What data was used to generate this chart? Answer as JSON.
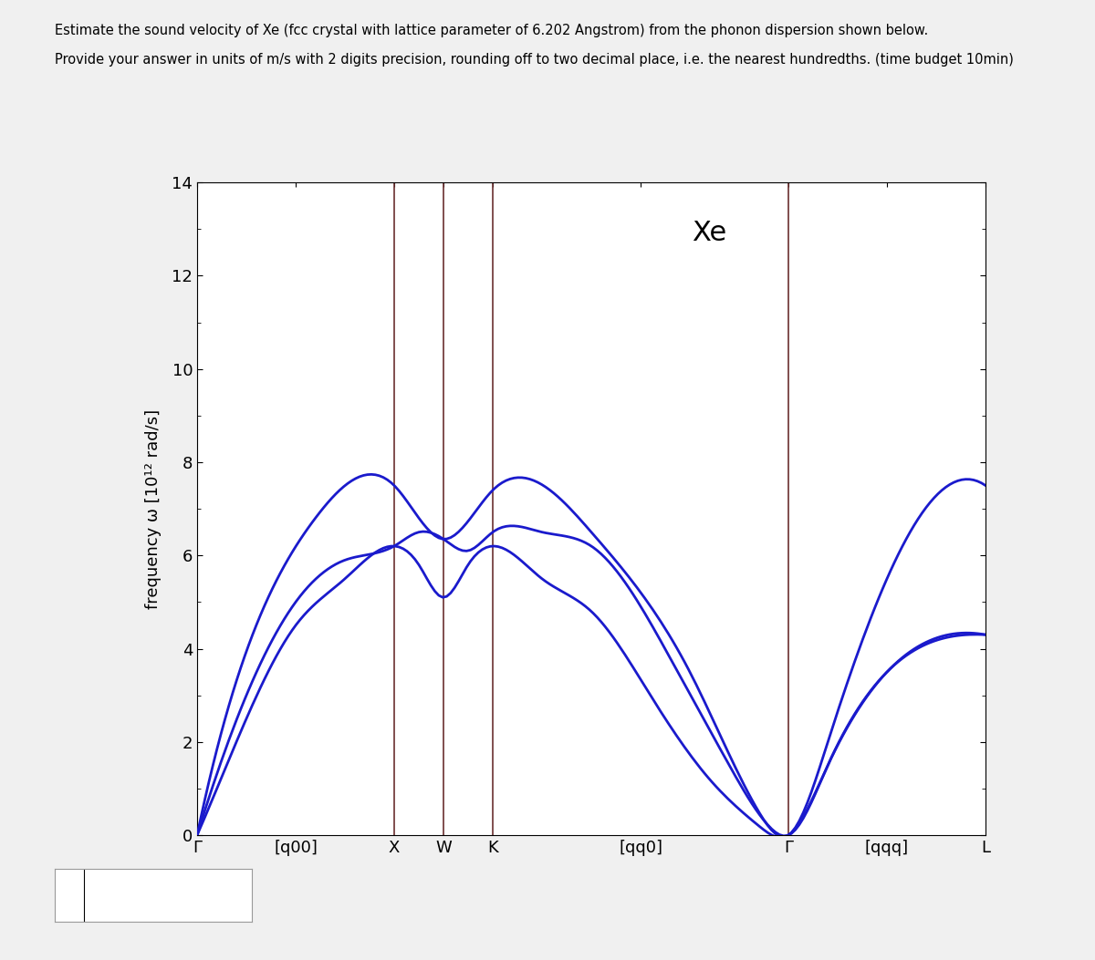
{
  "title_line1": "Estimate the sound velocity of Xe (fcc crystal with lattice parameter of 6.202 Angstrom) from the phonon dispersion shown below.",
  "title_line2": "Provide your answer in units of m/s with 2 digits precision, rounding off to two decimal place, i.e. the nearest hundredths. (time budget 10min)",
  "ylabel": "frequency ω [10¹² rad/s]",
  "crystal_label": "Xe",
  "ymax": 14,
  "ymin": 0,
  "yticks": [
    0,
    2,
    4,
    6,
    8,
    10,
    12,
    14
  ],
  "high_sym_labels": [
    "Γ",
    "[q00]",
    "X",
    "W",
    "K",
    "[qq0]",
    "Γ",
    "[qqq]",
    "L"
  ],
  "line_color": "#1a1acc",
  "vline_color": "#6b3030",
  "background_color": "#f0f0f0",
  "plot_bg": "#ffffff",
  "text_color": "#000000",
  "sym_x_positions": [
    0.0,
    0.5,
    1.0,
    1.25,
    1.5,
    2.25,
    3.0,
    3.5,
    4.0
  ]
}
